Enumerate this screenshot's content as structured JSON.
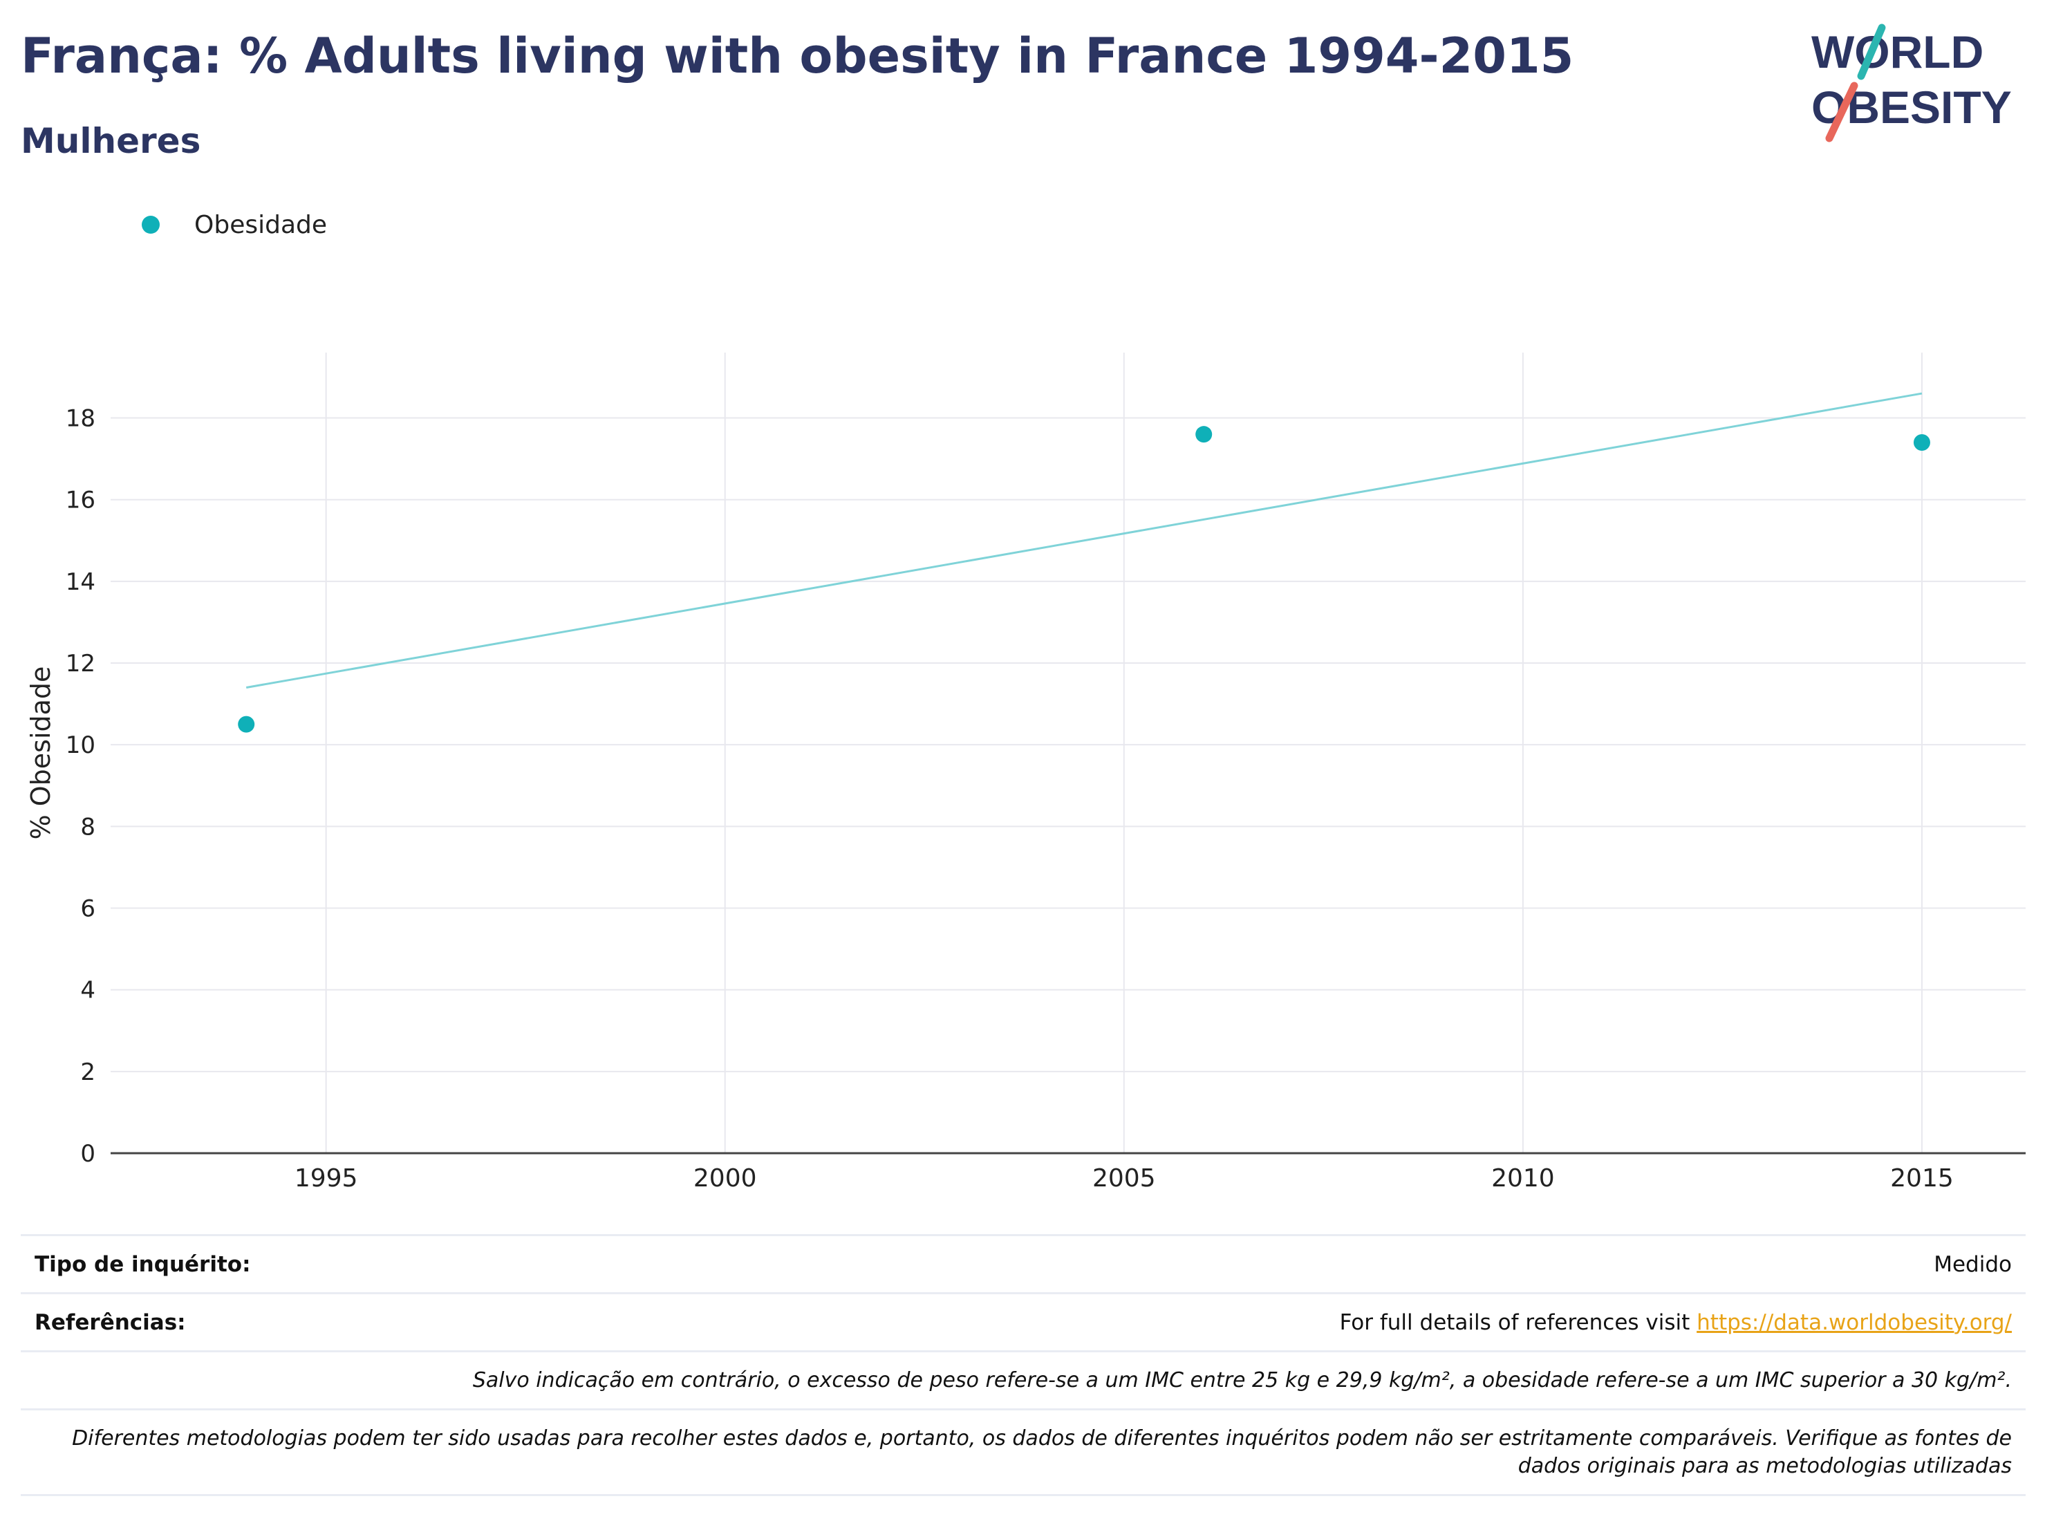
{
  "header": {
    "title": "França: % Adults living with obesity in France 1994-2015",
    "subtitle": "Mulheres"
  },
  "logo": {
    "line1": "WORLD",
    "line2": "OBESITY",
    "colors": {
      "text": "#2c3562",
      "slash_top": "#2bb5b0",
      "slash_bottom": "#e8675b"
    }
  },
  "legend": {
    "label": "Obesidade",
    "color": "#0fb0b8"
  },
  "chart_data": {
    "type": "scatter",
    "ylabel": "% Obesidade",
    "xlabel": "",
    "xlim": [
      1992.3,
      2016.3
    ],
    "ylim": [
      0,
      19.6
    ],
    "x_ticks": [
      1995,
      2000,
      2005,
      2010,
      2015
    ],
    "y_ticks": [
      0,
      2,
      4,
      6,
      8,
      10,
      12,
      14,
      16,
      18
    ],
    "grid": true,
    "legend_position": "top-left",
    "series": [
      {
        "name": "Obesidade",
        "color": "#0fb0b8",
        "points": [
          {
            "x": 1994,
            "y": 10.5
          },
          {
            "x": 2006,
            "y": 17.6
          },
          {
            "x": 2015,
            "y": 17.4
          }
        ]
      }
    ],
    "trendline": {
      "color": "#7fd3d8",
      "points": [
        {
          "x": 1994,
          "y": 11.4
        },
        {
          "x": 2015,
          "y": 18.6
        }
      ]
    }
  },
  "footer": {
    "survey_label": "Tipo de inquérito:",
    "survey_value": "Medido",
    "references_label": "Referências:",
    "references_text": "For full details of references visit ",
    "references_link": "https://data.worldobesity.org/",
    "note_bmi": "Salvo indicação em contrário, o excesso de peso refere-se a um IMC entre 25 kg e 29,9 kg/m², a obesidade refere-se a um IMC superior a 30 kg/m².",
    "note_methods": "Diferentes metodologias podem ter sido usadas para recolher estes dados e, portanto, os dados de diferentes inquéritos podem não ser estritamente comparáveis. Verifique as fontes de dados originais para as metodologias utilizadas"
  }
}
